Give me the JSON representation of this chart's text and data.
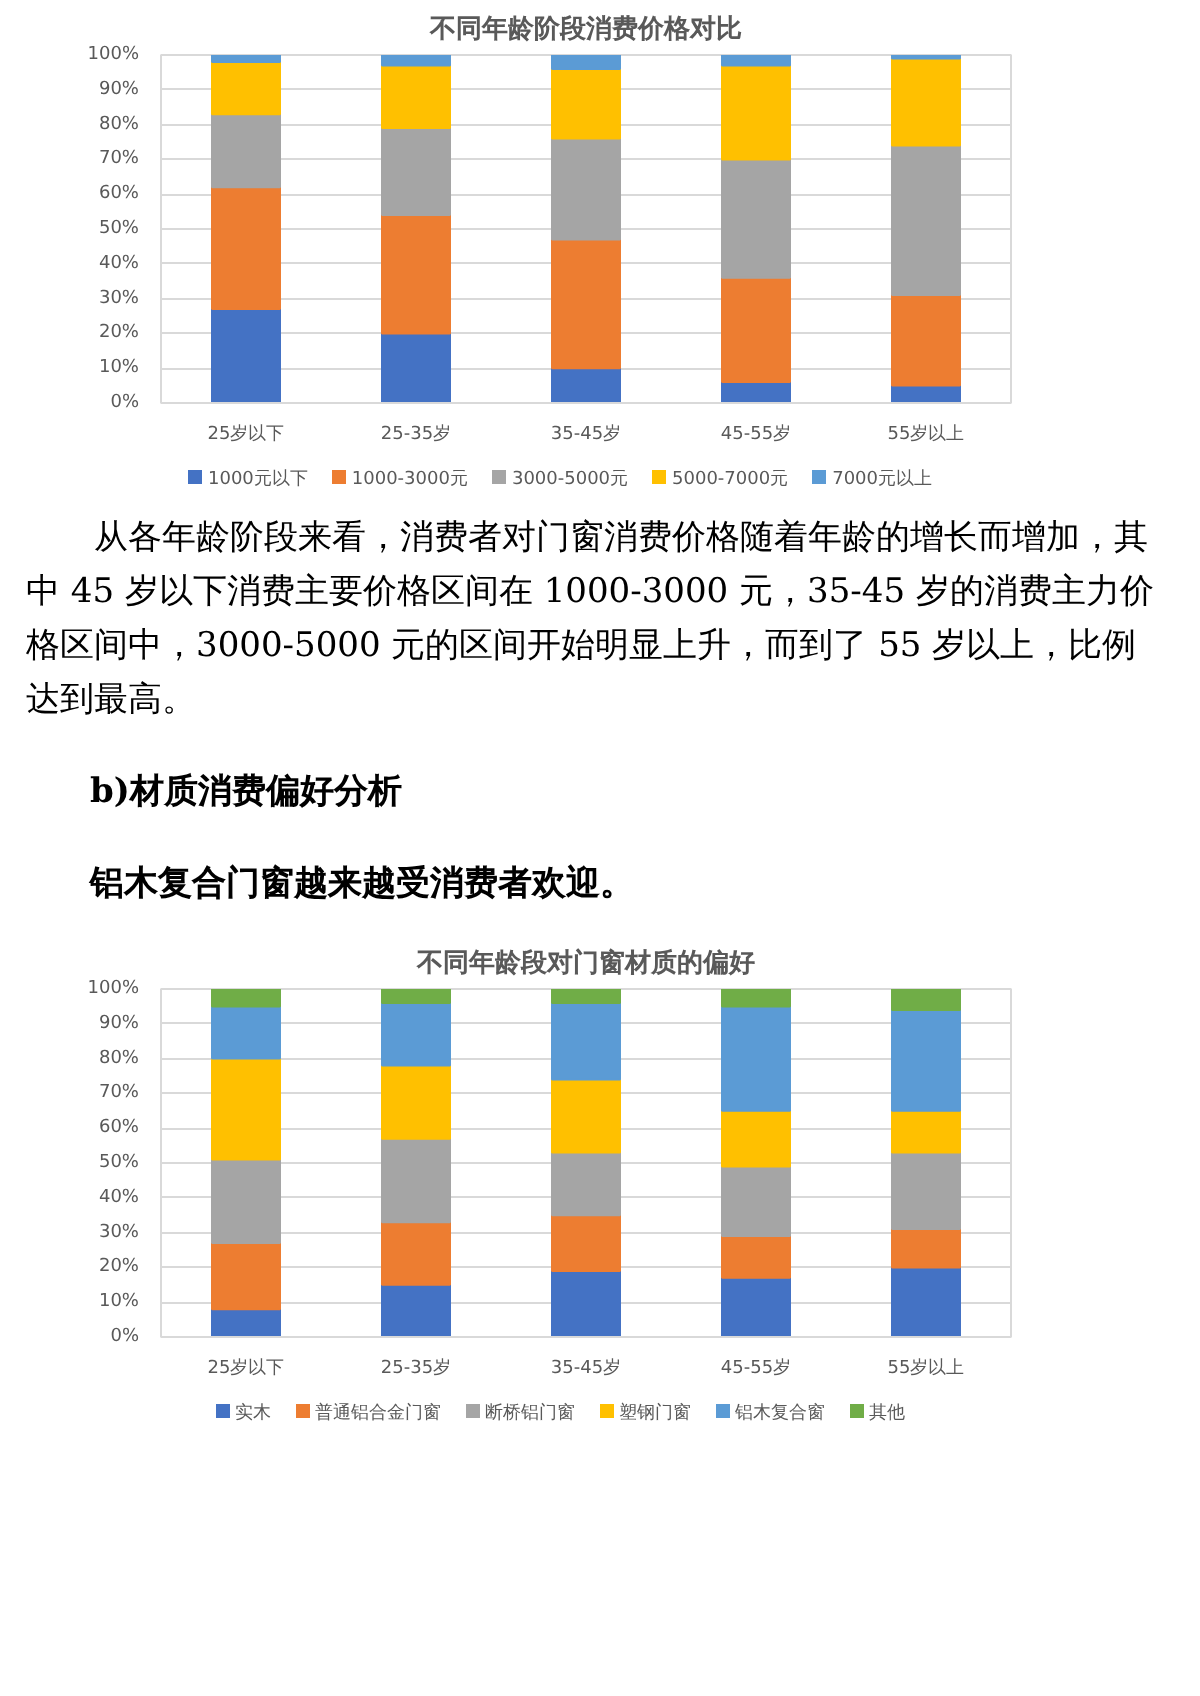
{
  "chart_data": [
    {
      "type": "bar",
      "stacked": true,
      "title": "不同年龄阶段消费价格对比",
      "categories": [
        "25岁以下",
        "25-35岁",
        "35-45岁",
        "45-55岁",
        "55岁以上"
      ],
      "series": [
        {
          "name": "1000元以下",
          "color": "#4472c4",
          "values": [
            27,
            20,
            10,
            6,
            5
          ]
        },
        {
          "name": "1000-3000元",
          "color": "#ed7d31",
          "values": [
            35,
            34,
            37,
            30,
            26
          ]
        },
        {
          "name": "3000-5000元",
          "color": "#a5a5a5",
          "values": [
            21,
            25,
            29,
            34,
            43
          ]
        },
        {
          "name": "5000-7000元",
          "color": "#ffc000",
          "values": [
            15,
            18,
            20,
            27,
            25
          ]
        },
        {
          "name": "7000元以上",
          "color": "#5b9bd5",
          "values": [
            2,
            3,
            4,
            3,
            1
          ]
        }
      ],
      "ylim": [
        0,
        100
      ],
      "yticks": [
        {
          "value": 0,
          "label": "0%"
        },
        {
          "value": 10,
          "label": "10%"
        },
        {
          "value": 20,
          "label": "20%"
        },
        {
          "value": 30,
          "label": "30%"
        },
        {
          "value": 40,
          "label": "40%"
        },
        {
          "value": 50,
          "label": "50%"
        },
        {
          "value": 60,
          "label": "60%"
        },
        {
          "value": 70,
          "label": "70%"
        },
        {
          "value": 80,
          "label": "80%"
        },
        {
          "value": 90,
          "label": "90%"
        },
        {
          "value": 100,
          "label": "100%"
        }
      ],
      "grid": "y",
      "legend": "bottom",
      "annotations": [
        "从各年龄阶段来看，消费者对门窗消费价格随着年龄的增长而增加，其中 45 岁以下消费主要价格区间在 1000-3000 元，35-45 岁的消费主力价格区间中，3000-5000 元的区间开始明显上升，而到了 55 岁以上，比例达到最高。",
        "b)材质消费偏好分析",
        "铝木复合门窗越来越受消费者欢迎。"
      ]
    },
    {
      "type": "bar",
      "stacked": true,
      "title": "不同年龄段对门窗材质的偏好",
      "categories": [
        "25岁以下",
        "25-35岁",
        "35-45岁",
        "45-55岁",
        "55岁以上"
      ],
      "series": [
        {
          "name": "实木",
          "color": "#4472c4",
          "values": [
            8,
            15,
            19,
            17,
            20
          ]
        },
        {
          "name": "普通铝合金门窗",
          "color": "#ed7d31",
          "values": [
            19,
            18,
            16,
            12,
            11
          ]
        },
        {
          "name": "断桥铝门窗",
          "color": "#a5a5a5",
          "values": [
            24,
            24,
            18,
            20,
            22
          ]
        },
        {
          "name": "塑钢门窗",
          "color": "#ffc000",
          "values": [
            29,
            21,
            21,
            16,
            12
          ]
        },
        {
          "name": "铝木复合窗",
          "color": "#5b9bd5",
          "values": [
            15,
            18,
            22,
            30,
            29
          ]
        },
        {
          "name": "其他",
          "color": "#70ad47",
          "values": [
            5,
            4,
            4,
            5,
            6
          ]
        }
      ],
      "ylim": [
        0,
        100
      ],
      "yticks": [
        {
          "value": 0,
          "label": "0%"
        },
        {
          "value": 10,
          "label": "10%"
        },
        {
          "value": 20,
          "label": "20%"
        },
        {
          "value": 30,
          "label": "30%"
        },
        {
          "value": 40,
          "label": "40%"
        },
        {
          "value": 50,
          "label": "50%"
        },
        {
          "value": 60,
          "label": "60%"
        },
        {
          "value": 70,
          "label": "70%"
        },
        {
          "value": 80,
          "label": "80%"
        },
        {
          "value": 90,
          "label": "90%"
        },
        {
          "value": 100,
          "label": "100%"
        }
      ],
      "grid": "y",
      "legend": "bottom"
    }
  ]
}
